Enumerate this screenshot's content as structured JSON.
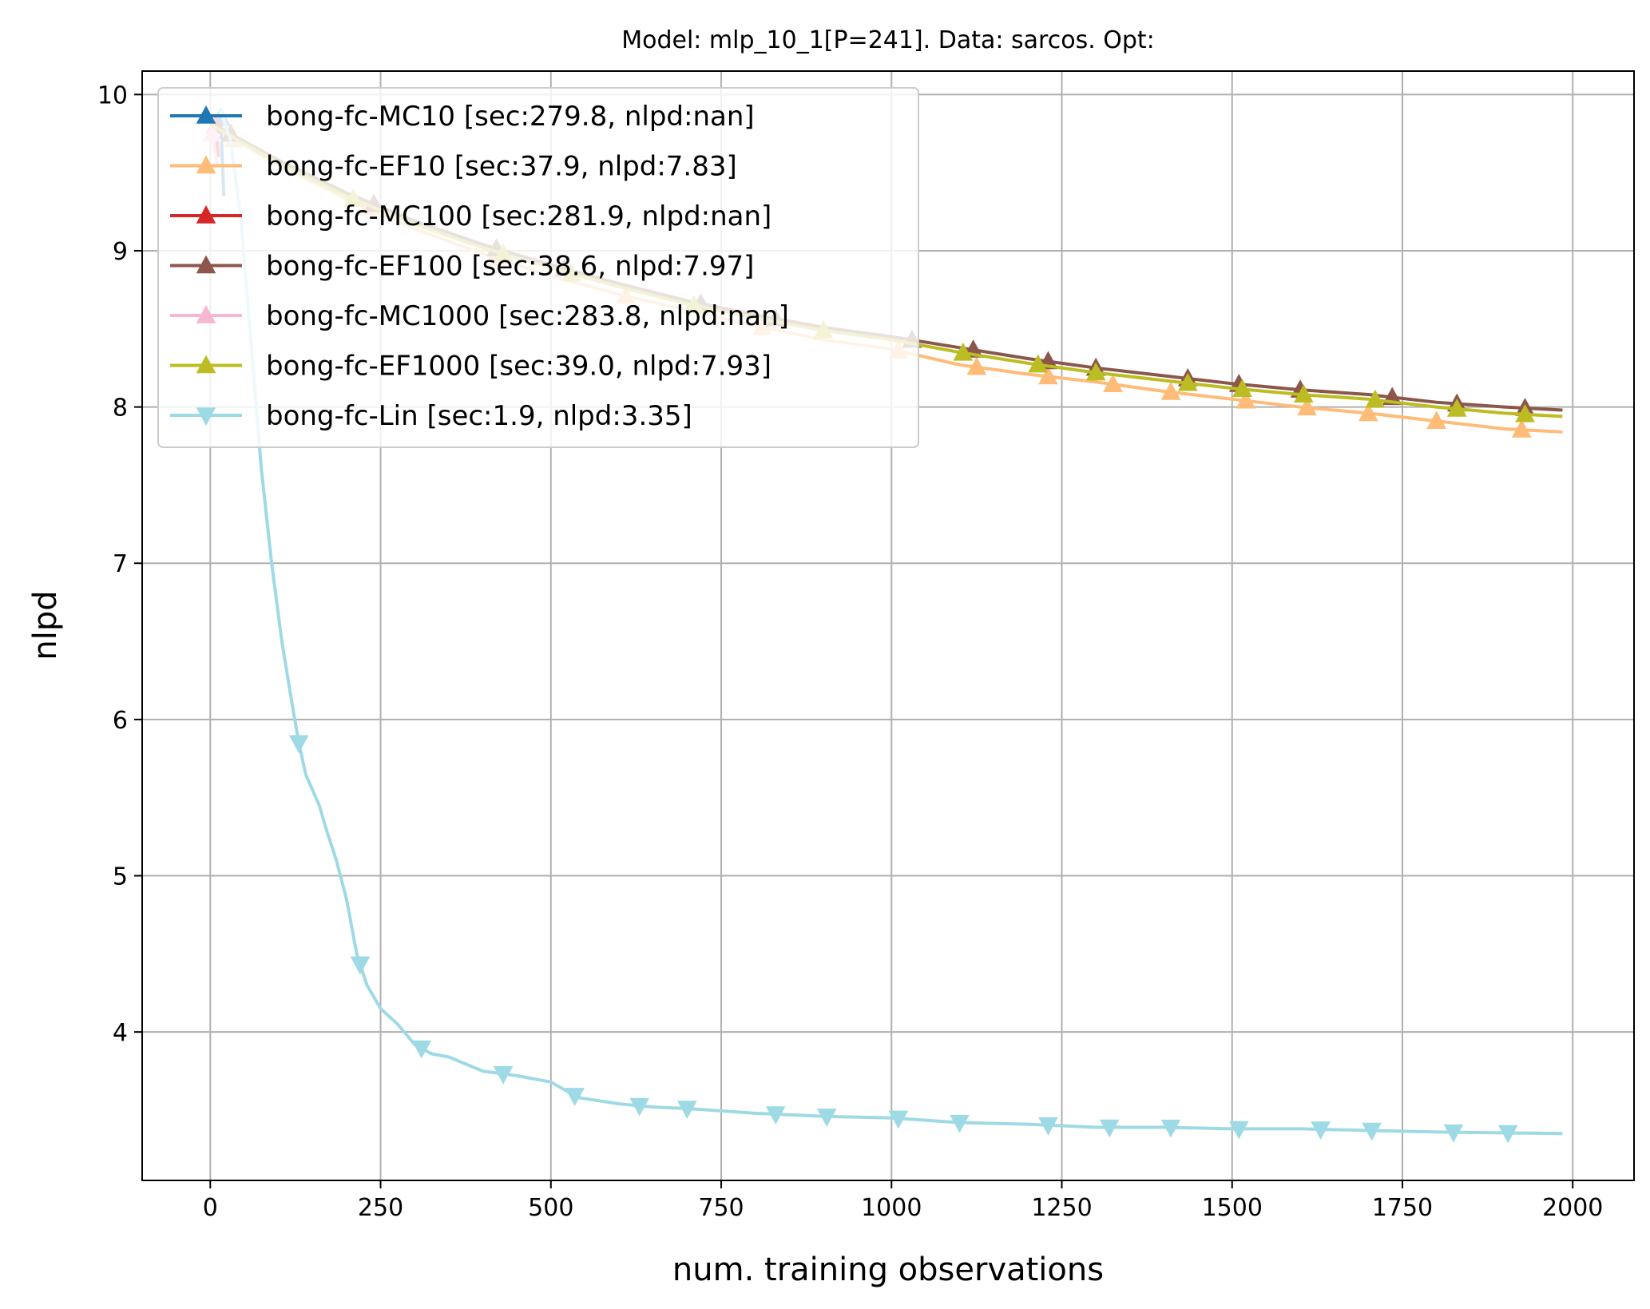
{
  "chart_data": {
    "type": "line",
    "title": "Model: mlp_10_1[P=241]. Data: sarcos. Opt:",
    "xlabel": "num. training observations",
    "ylabel": "nlpd",
    "xlim": [
      -100,
      2090
    ],
    "ylim": [
      3.05,
      10.15
    ],
    "xticks": [
      0,
      250,
      500,
      750,
      1000,
      1250,
      1500,
      1750,
      2000
    ],
    "yticks": [
      4,
      5,
      6,
      7,
      8,
      9,
      10
    ],
    "grid": true,
    "legend_position": "upper-left",
    "series": [
      {
        "name": "bong-fc-MC10 [sec:279.8, nlpd:nan]",
        "color": "#1f77b4",
        "marker": "triangle-up",
        "x": [
          15,
          20
        ],
        "y": [
          9.85,
          9.35
        ]
      },
      {
        "name": "bong-fc-EF10 [sec:37.9, nlpd:7.83]",
        "color": "#ffbb78",
        "marker": "triangle-up",
        "x": [
          0,
          100,
          200,
          300,
          400,
          500,
          600,
          700,
          800,
          900,
          1000,
          1100,
          1200,
          1300,
          1400,
          1500,
          1600,
          1700,
          1800,
          1900,
          1985
        ],
        "y": [
          9.8,
          9.55,
          9.33,
          9.14,
          8.98,
          8.84,
          8.72,
          8.62,
          8.52,
          8.43,
          8.37,
          8.27,
          8.21,
          8.16,
          8.1,
          8.05,
          8.0,
          7.96,
          7.91,
          7.86,
          7.84
        ],
        "marker_x": [
          35,
          230,
          420,
          610,
          810,
          1010,
          1125,
          1230,
          1325,
          1410,
          1520,
          1610,
          1700,
          1800,
          1925
        ]
      },
      {
        "name": "bong-fc-MC100 [sec:281.9, nlpd:nan]",
        "color": "#d62728",
        "marker": "triangle-up",
        "x": [
          8,
          12
        ],
        "y": [
          9.8,
          9.6
        ]
      },
      {
        "name": "bong-fc-EF100 [sec:38.6, nlpd:7.97]",
        "color": "#8c564b",
        "marker": "triangle-up",
        "x": [
          0,
          100,
          200,
          300,
          400,
          500,
          600,
          700,
          800,
          900,
          1000,
          1100,
          1200,
          1300,
          1400,
          1500,
          1600,
          1700,
          1800,
          1900,
          1985
        ],
        "y": [
          9.82,
          9.58,
          9.37,
          9.19,
          9.04,
          8.91,
          8.79,
          8.68,
          8.59,
          8.51,
          8.45,
          8.38,
          8.31,
          8.25,
          8.2,
          8.15,
          8.11,
          8.08,
          8.03,
          8.0,
          7.98
        ],
        "marker_x": [
          30,
          240,
          420,
          520,
          720,
          830,
          1030,
          1120,
          1230,
          1300,
          1435,
          1510,
          1600,
          1735,
          1830,
          1930
        ]
      },
      {
        "name": "bong-fc-MC1000 [sec:283.8, nlpd:nan]",
        "color": "#f7b6d2",
        "marker": "triangle-up",
        "x": [
          3,
          10
        ],
        "y": [
          9.75,
          9.55
        ]
      },
      {
        "name": "bong-fc-EF1000 [sec:39.0, nlpd:7.93]",
        "color": "#bcbd22",
        "marker": "triangle-up",
        "x": [
          0,
          100,
          200,
          300,
          400,
          500,
          600,
          700,
          800,
          900,
          1000,
          1100,
          1200,
          1300,
          1400,
          1500,
          1600,
          1700,
          1800,
          1900,
          1985
        ],
        "y": [
          9.81,
          9.56,
          9.35,
          9.17,
          9.02,
          8.89,
          8.77,
          8.66,
          8.57,
          8.49,
          8.43,
          8.35,
          8.28,
          8.22,
          8.17,
          8.12,
          8.08,
          8.05,
          8.0,
          7.96,
          7.94
        ],
        "marker_x": [
          210,
          430,
          530,
          710,
          900,
          1105,
          1215,
          1300,
          1435,
          1515,
          1605,
          1710,
          1830,
          1930
        ]
      },
      {
        "name": "bong-fc-Lin [sec:1.9, nlpd:3.35]",
        "color": "#9edae5",
        "marker": "triangle-down",
        "x": [
          15,
          30,
          45,
          60,
          75,
          90,
          105,
          120,
          130,
          140,
          150,
          160,
          170,
          185,
          200,
          215,
          230,
          250,
          275,
          300,
          325,
          350,
          400,
          450,
          500,
          540,
          600,
          650,
          700,
          800,
          900,
          1000,
          1100,
          1200,
          1300,
          1400,
          1500,
          1600,
          1700,
          1800,
          1985
        ],
        "y": [
          9.9,
          9.7,
          9.2,
          8.4,
          7.6,
          7.0,
          6.5,
          6.1,
          5.85,
          5.65,
          5.55,
          5.45,
          5.3,
          5.1,
          4.85,
          4.5,
          4.3,
          4.15,
          4.05,
          3.92,
          3.86,
          3.84,
          3.75,
          3.72,
          3.68,
          3.58,
          3.54,
          3.52,
          3.51,
          3.48,
          3.46,
          3.45,
          3.42,
          3.41,
          3.39,
          3.39,
          3.38,
          3.38,
          3.37,
          3.36,
          3.35
        ],
        "marker_x": [
          130,
          220,
          310,
          430,
          535,
          630,
          700,
          830,
          905,
          1010,
          1100,
          1230,
          1320,
          1410,
          1510,
          1630,
          1705,
          1825,
          1905
        ]
      }
    ]
  }
}
